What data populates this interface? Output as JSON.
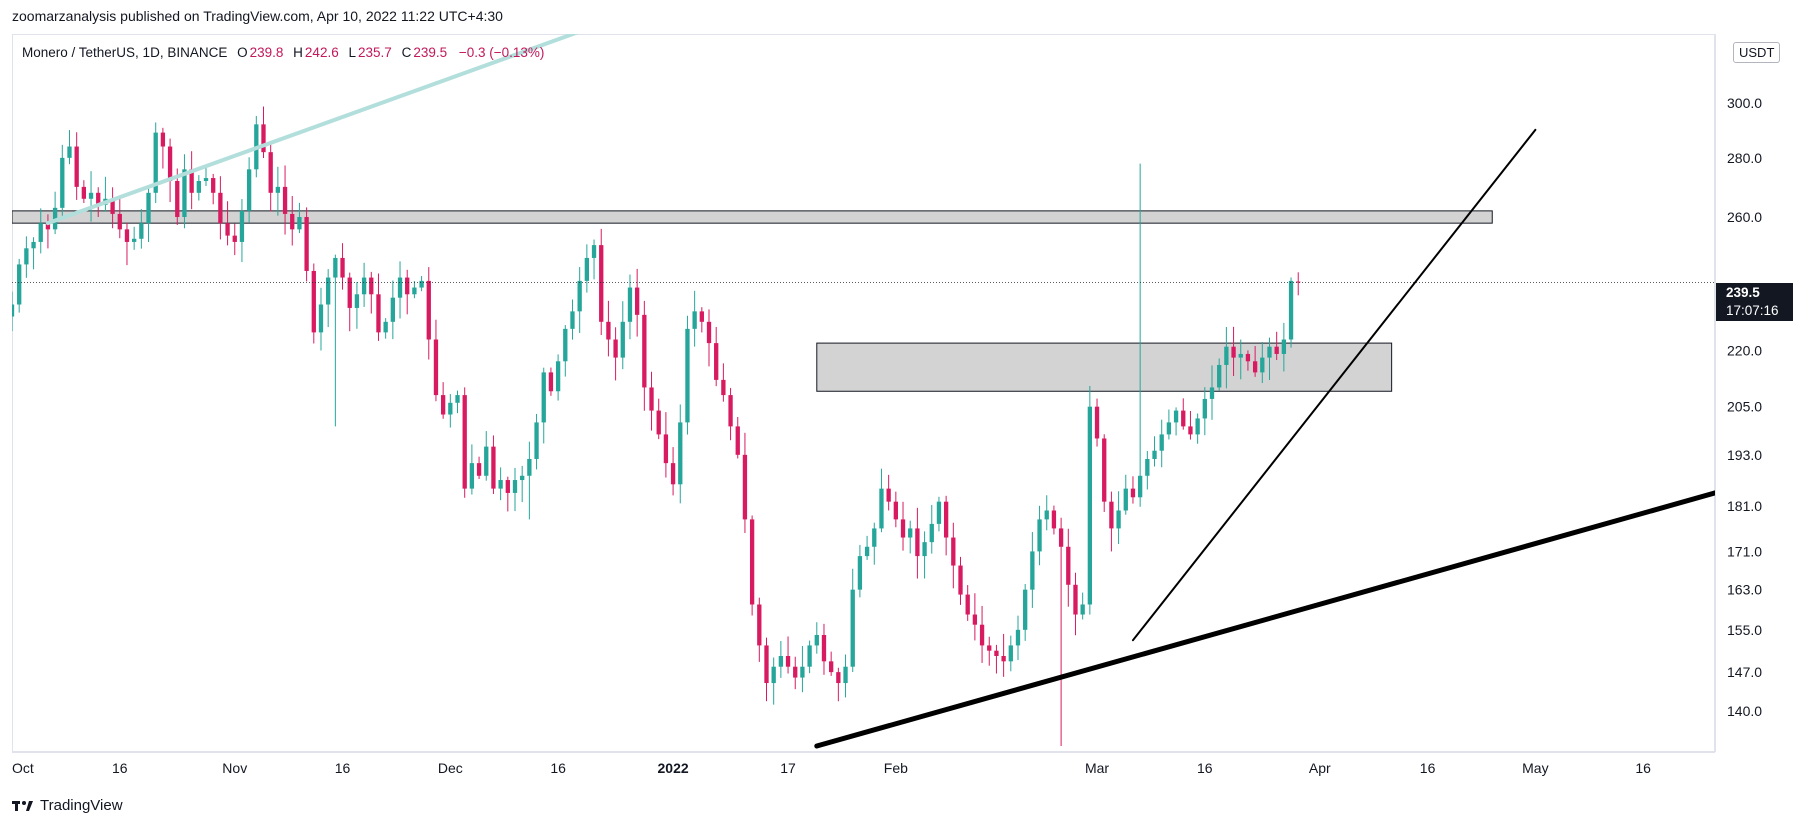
{
  "header": {
    "text": "zoomarzanalysis published on TradingView.com, Apr 10, 2022 11:22 UTC+4:30"
  },
  "legend": {
    "symbol": "Monero / TetherUS, 1D, BINANCE",
    "o_label": "O",
    "o": "239.8",
    "h_label": "H",
    "h": "242.6",
    "l_label": "L",
    "l": "235.7",
    "c_label": "C",
    "c": "239.5",
    "change": "−0.3 (−0.13%)"
  },
  "currency_badge": "USDT",
  "last_price": {
    "value": "239.5",
    "countdown": "17:07:16"
  },
  "footer": {
    "brand": "TradingView",
    "logo_icon": "tradingview-logo-icon"
  },
  "colors": {
    "up": "#26a69a",
    "down": "#d81b60",
    "zone_fill": "#d3d3d3",
    "teal_line": "#b2dfdb",
    "text": "#131722"
  },
  "chart_data": {
    "type": "candlestick",
    "title": "",
    "symbol": "XMR/USDT",
    "interval": "1D",
    "exchange": "BINANCE",
    "price_scale": "log",
    "ylim": [
      133,
      327
    ],
    "y_ticks": [
      140.0,
      147.0,
      155.0,
      163.0,
      171.0,
      181.0,
      193.0,
      205.0,
      220.0,
      260.0,
      280.0,
      300.0
    ],
    "x_ticks": [
      {
        "label": "Oct",
        "date": "2021-10-01"
      },
      {
        "label": "16",
        "date": "2021-10-16"
      },
      {
        "label": "Nov",
        "date": "2021-11-01"
      },
      {
        "label": "16",
        "date": "2021-11-16"
      },
      {
        "label": "Dec",
        "date": "2021-12-01"
      },
      {
        "label": "16",
        "date": "2021-12-16"
      },
      {
        "label": "2022",
        "date": "2022-01-01",
        "bold": true
      },
      {
        "label": "17",
        "date": "2022-01-17"
      },
      {
        "label": "Feb",
        "date": "2022-02-01"
      },
      {
        "label": "Mar",
        "date": "2022-03-01"
      },
      {
        "label": "16",
        "date": "2022-03-16"
      },
      {
        "label": "Apr",
        "date": "2022-04-01"
      },
      {
        "label": "16",
        "date": "2022-04-16"
      },
      {
        "label": "May",
        "date": "2022-05-01"
      },
      {
        "label": "16",
        "date": "2022-05-16"
      }
    ],
    "xlim": [
      "2021-10-01",
      "2022-05-26"
    ],
    "start_date": "2021-10-01",
    "closes": [
      233,
      245,
      250,
      252,
      258,
      256,
      263,
      280,
      284,
      270,
      266,
      268,
      264,
      266,
      261,
      256,
      252,
      253,
      258,
      268,
      289,
      284,
      272,
      260,
      276,
      268,
      272,
      273,
      268,
      258,
      254,
      252,
      262,
      276,
      292,
      282,
      268,
      270,
      261,
      256,
      260,
      243,
      225,
      233,
      241,
      247,
      241,
      232,
      236,
      241,
      236,
      225,
      228,
      235,
      241,
      236,
      238,
      240,
      223,
      208,
      203,
      206,
      208,
      185,
      191,
      188,
      195,
      185,
      187,
      184,
      187,
      188,
      192,
      201,
      214,
      209,
      217,
      226,
      231,
      240,
      247,
      251,
      228,
      223,
      218,
      228,
      238,
      230,
      210,
      204,
      198,
      191,
      186,
      201,
      226,
      231,
      228,
      222,
      212,
      208,
      200,
      193,
      178,
      160,
      152,
      145,
      148,
      150,
      148,
      146,
      148,
      152,
      154,
      149,
      147,
      145,
      148,
      163,
      170,
      172,
      176,
      185,
      182,
      178,
      174,
      176,
      170,
      173,
      177,
      182,
      174,
      168,
      162,
      158,
      156,
      152,
      151,
      150,
      149,
      152,
      155,
      163,
      171,
      178,
      180,
      176,
      172,
      164,
      158,
      160,
      205,
      197,
      182,
      176,
      180,
      185,
      183,
      188,
      192,
      194,
      198,
      201,
      204,
      200,
      198,
      202,
      207,
      210,
      216,
      221,
      218,
      219,
      217,
      214,
      218,
      221,
      219,
      223,
      240,
      239.5
    ],
    "last_bar": {
      "open": 239.8,
      "high": 242.6,
      "low": 235.7,
      "close": 239.5
    },
    "last_price": 239.5,
    "spikes": [
      {
        "date": "2021-11-15",
        "low": 200
      },
      {
        "date": "2022-03-07",
        "high": 278
      },
      {
        "date": "2022-02-24",
        "low": 134
      },
      {
        "date": "2021-12-12",
        "low": 178
      }
    ],
    "zones": [
      {
        "from": "2021-10-01",
        "to": "2022-04-25",
        "low": 258,
        "high": 262
      },
      {
        "from": "2022-01-21",
        "to": "2022-04-11",
        "low": 209,
        "high": 222
      }
    ],
    "trendlines": [
      {
        "name": "teal-upper",
        "from": {
          "date": "2021-10-06",
          "price": 258
        },
        "to": {
          "date": "2021-12-19",
          "price": 328
        }
      },
      {
        "name": "thin-support",
        "from": {
          "date": "2022-03-06",
          "price": 153
        },
        "to": {
          "date": "2022-05-01",
          "price": 290
        }
      },
      {
        "name": "thick-support",
        "from": {
          "date": "2022-01-21",
          "price": 134
        },
        "to": {
          "date": "2022-05-26",
          "price": 184
        }
      }
    ]
  }
}
